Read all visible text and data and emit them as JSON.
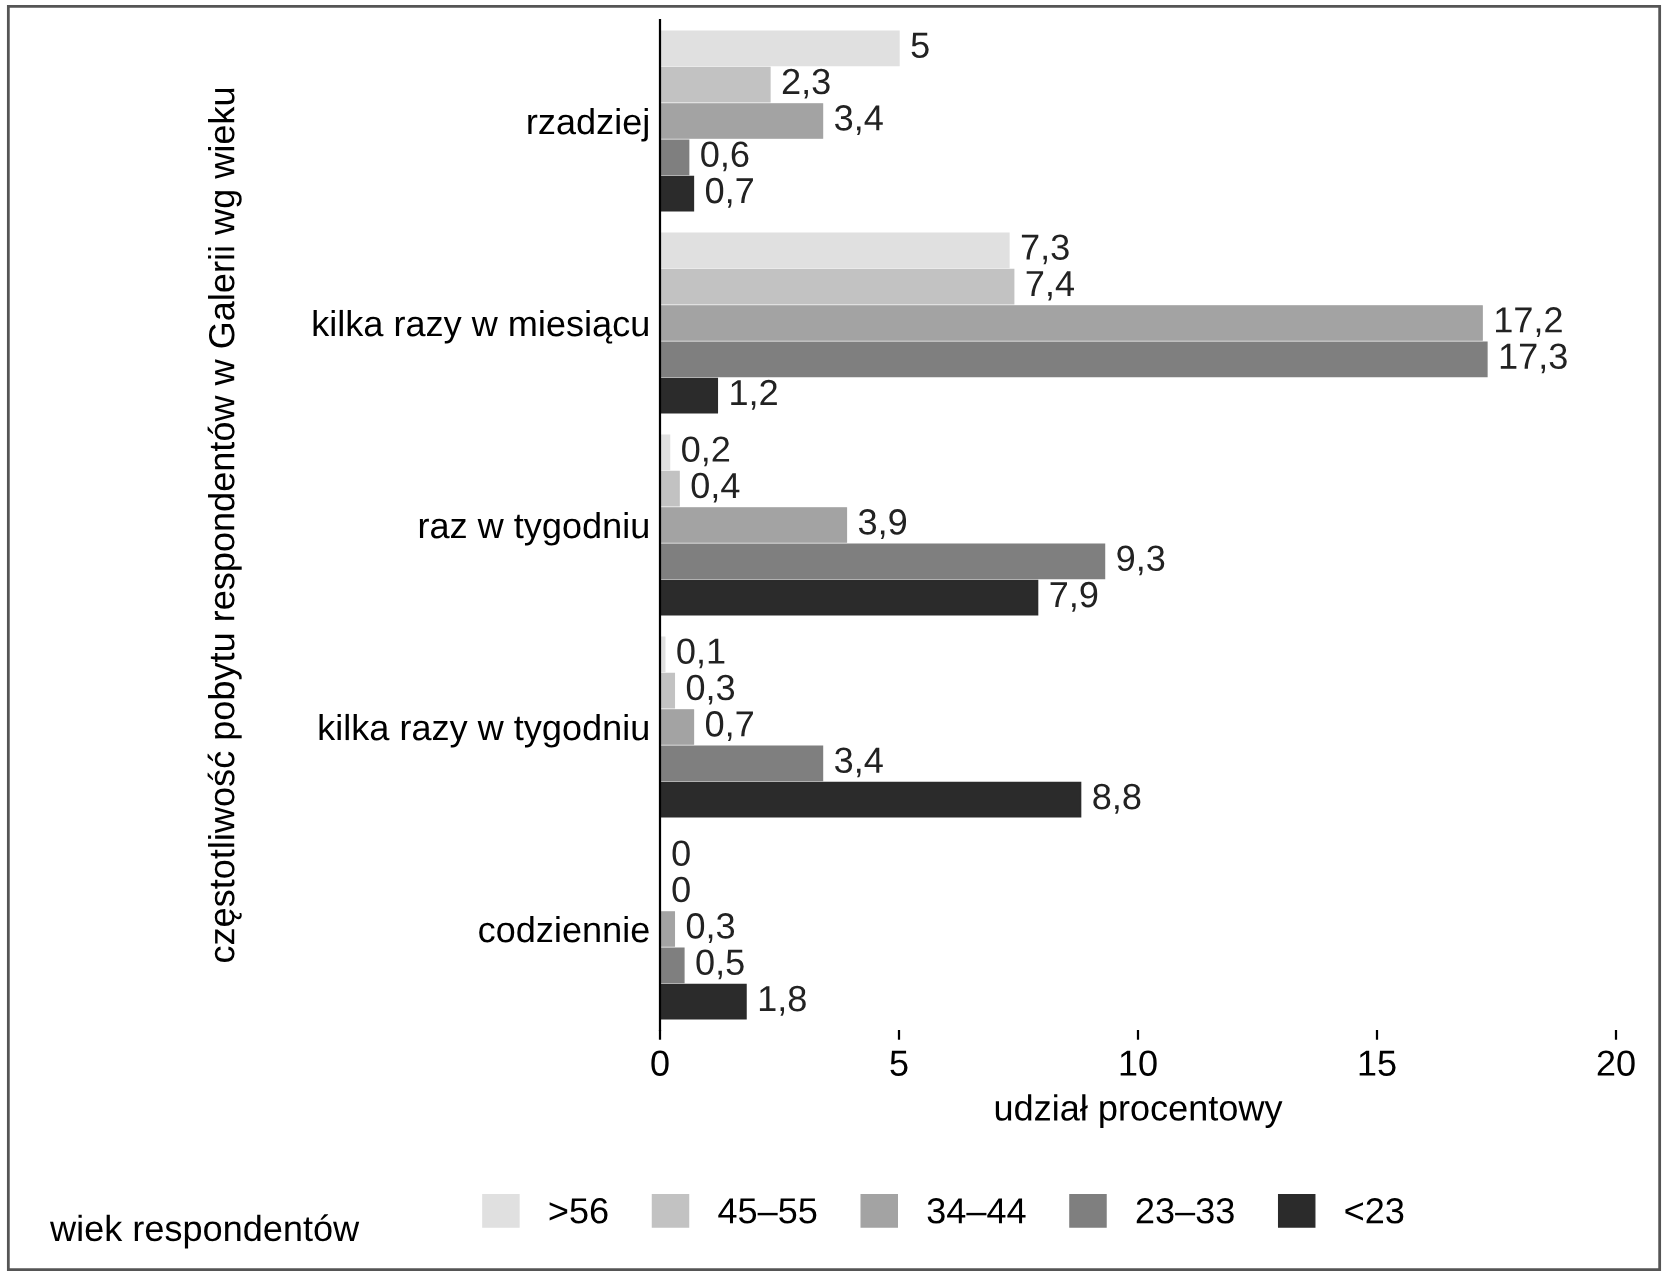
{
  "chart_data": {
    "type": "bar",
    "orientation": "horizontal",
    "xlabel": "udział procentowy",
    "ylabel": "częstotliwość pobytu respondentów w Galerii wg wieku",
    "legend_title": "wiek respondentów",
    "legend": "bottom",
    "grid": false,
    "categories": [
      "rzadziej",
      "kilka razy w miesiącu",
      "raz w tygodniu",
      "kilka razy w tygodniu",
      "codziennie"
    ],
    "xlim": [
      0,
      20
    ],
    "xticks": [
      0,
      5,
      10,
      15,
      20
    ],
    "series": [
      {
        "name": ">56",
        "color": "#e0e0e0",
        "values": [
          5,
          7.3,
          0.2,
          0.1,
          0
        ],
        "value_labels": [
          "5",
          "7,3",
          "0,2",
          "0,1",
          "0"
        ]
      },
      {
        "name": "45–55",
        "color": "#c2c2c2",
        "values": [
          2.3,
          7.4,
          0.4,
          0.3,
          0
        ],
        "value_labels": [
          "2,3",
          "7,4",
          "0,4",
          "0,3",
          "0"
        ]
      },
      {
        "name": "34–44",
        "color": "#a3a3a3",
        "values": [
          3.4,
          17.2,
          3.9,
          0.7,
          0.3
        ],
        "value_labels": [
          "3,4",
          "17,2",
          "3,9",
          "0,7",
          "0,3"
        ]
      },
      {
        "name": "23–33",
        "color": "#7f7f7f",
        "values": [
          0.6,
          17.3,
          9.3,
          3.4,
          0.5
        ],
        "value_labels": [
          "0,6",
          "17,3",
          "9,3",
          "3,4",
          "0,5"
        ]
      },
      {
        "name": "<23",
        "color": "#2b2b2b",
        "values": [
          0.7,
          1.2,
          7.9,
          8.8,
          1.8
        ],
        "value_labels": [
          "0,7",
          "1,2",
          "7,9",
          "8,8",
          "1,8"
        ]
      }
    ]
  }
}
